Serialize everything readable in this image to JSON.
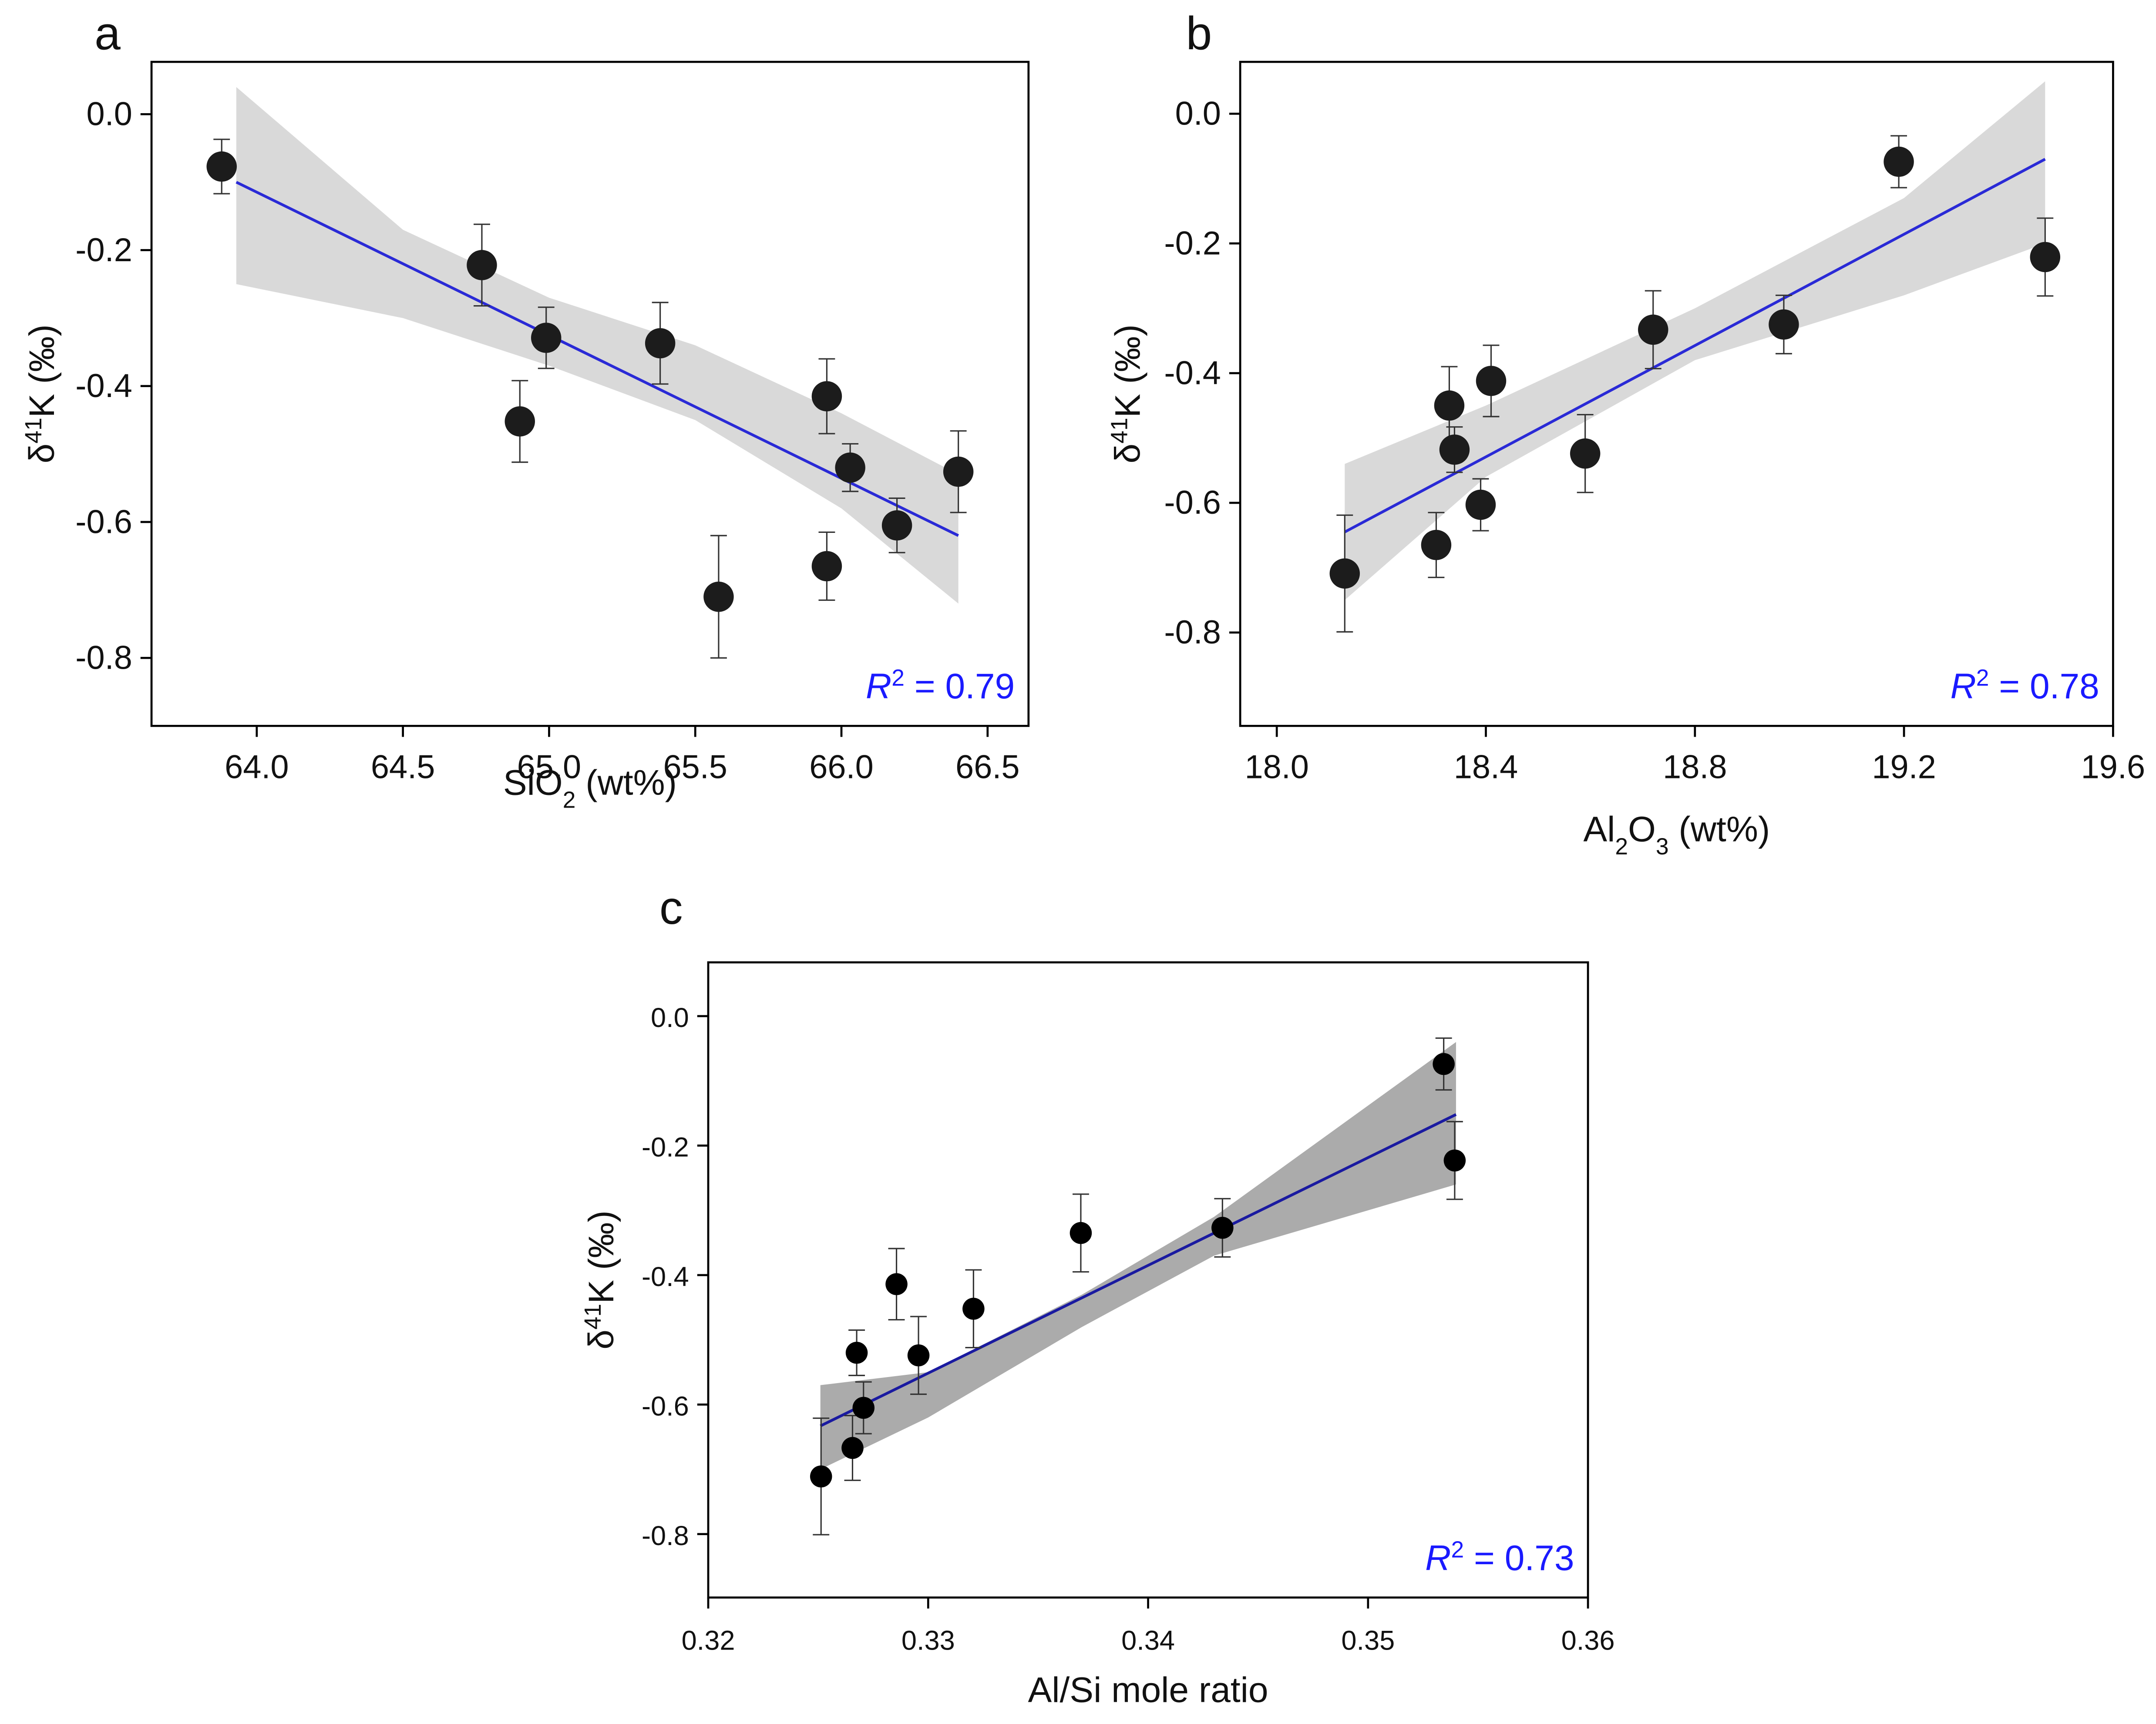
{
  "chart_data": [
    {
      "type": "scatter",
      "panel_label": "a",
      "xlabel": [
        {
          "text": "SiO"
        },
        {
          "text": "2",
          "shift": "sub"
        },
        {
          "text": " (wt%)"
        }
      ],
      "ylabel": [
        {
          "text": "δ"
        },
        {
          "text": "41",
          "shift": "super"
        },
        {
          "text": "K (‰)"
        }
      ],
      "x": [
        63.88,
        64.77,
        64.99,
        64.9,
        65.38,
        65.95,
        66.03,
        66.19,
        66.4,
        65.58,
        65.95
      ],
      "y": [
        -0.077,
        -0.222,
        -0.329,
        -0.452,
        -0.337,
        -0.415,
        -0.52,
        -0.605,
        -0.526,
        -0.71,
        -0.665
      ],
      "errors": [
        0.04,
        0.06,
        0.045,
        0.06,
        0.06,
        0.055,
        0.035,
        0.04,
        0.06,
        0.09,
        0.05
      ],
      "marker_color": "#1c1c1c",
      "fit": {
        "x": [
          63.93,
          66.4
        ],
        "y": [
          -0.1,
          -0.62
        ],
        "color": "#2a2ad6"
      },
      "band": {
        "x": [
          63.93,
          64.5,
          65.0,
          65.5,
          66.0,
          66.4
        ],
        "upper": [
          0.04,
          -0.17,
          -0.27,
          -0.34,
          -0.44,
          -0.53
        ],
        "lower": [
          -0.25,
          -0.3,
          -0.37,
          -0.45,
          -0.58,
          -0.72
        ],
        "color": "#d9d9d9"
      },
      "annotation": [
        {
          "text": "R",
          "style": "italic"
        },
        {
          "text": "2",
          "shift": "super"
        },
        {
          "text": " = 0.79"
        }
      ],
      "annotation_color": "#1a1aff",
      "xlim": [
        63.64,
        66.64
      ],
      "ylim": [
        -0.9,
        0.077
      ],
      "xticks": [
        {
          "value": 64,
          "label": "64.0"
        },
        64.5,
        {
          "value": 65,
          "label": "65.0"
        },
        65.5,
        {
          "value": 66,
          "label": "66.0"
        },
        66.5
      ],
      "yticks": [
        {
          "value": 0,
          "label": "0.0"
        },
        -0.2,
        -0.4,
        -0.6,
        -0.8
      ]
    },
    {
      "type": "scatter",
      "panel_label": "b",
      "xlabel": [
        {
          "text": "Al"
        },
        {
          "text": "2",
          "shift": "sub"
        },
        {
          "text": "O"
        },
        {
          "text": "3",
          "shift": "sub"
        },
        {
          "text": " (wt%)"
        }
      ],
      "ylabel": [
        {
          "text": "δ"
        },
        {
          "text": "41",
          "shift": "super"
        },
        {
          "text": "K (‰)"
        }
      ],
      "x": [
        18.13,
        18.305,
        18.33,
        18.34,
        18.39,
        18.41,
        18.59,
        18.72,
        18.97,
        19.19,
        19.47
      ],
      "y": [
        -0.709,
        -0.665,
        -0.45,
        -0.518,
        -0.603,
        -0.412,
        -0.524,
        -0.333,
        -0.325,
        -0.074,
        -0.221
      ],
      "errors": [
        0.09,
        0.05,
        0.06,
        0.035,
        0.04,
        0.055,
        0.06,
        0.06,
        0.045,
        0.04,
        0.06
      ],
      "marker_color": "#1c1c1c",
      "fit": {
        "x": [
          18.13,
          19.47
        ],
        "y": [
          -0.645,
          -0.07
        ],
        "color": "#2a2ad6"
      },
      "band": {
        "x": [
          18.13,
          18.4,
          18.8,
          19.2,
          19.47
        ],
        "upper": [
          -0.54,
          -0.45,
          -0.3,
          -0.13,
          0.05
        ],
        "lower": [
          -0.75,
          -0.56,
          -0.38,
          -0.28,
          -0.2
        ],
        "color": "#d9d9d9"
      },
      "annotation": [
        {
          "text": "R",
          "style": "italic"
        },
        {
          "text": "2",
          "shift": "super"
        },
        {
          "text": " = 0.78"
        }
      ],
      "annotation_color": "#1a1aff",
      "xlim": [
        17.93,
        19.6
      ],
      "ylim": [
        -0.944,
        0.08
      ],
      "xticks": [
        {
          "value": 18,
          "label": "18.0"
        },
        18.4,
        18.8,
        19.2,
        19.6
      ],
      "yticks": [
        {
          "value": 0,
          "label": "0.0"
        },
        -0.2,
        -0.4,
        -0.6,
        -0.8
      ]
    },
    {
      "type": "scatter",
      "panel_label": "c",
      "xlabel": [
        {
          "text": "Al/Si mole ratio"
        }
      ],
      "ylabel": [
        {
          "text": "δ"
        },
        {
          "text": "41",
          "shift": "super"
        },
        {
          "text": "K (‰)"
        }
      ],
      "x": [
        0.32513,
        0.32656,
        0.32675,
        0.32706,
        0.32856,
        0.32956,
        0.33206,
        0.33694,
        0.34338,
        0.35344,
        0.35394
      ],
      "y": [
        -0.711,
        -0.667,
        -0.52,
        -0.605,
        -0.414,
        -0.524,
        -0.452,
        -0.335,
        -0.327,
        -0.074,
        -0.223
      ],
      "errors": [
        0.09,
        0.05,
        0.035,
        0.04,
        0.055,
        0.06,
        0.06,
        0.06,
        0.045,
        0.04,
        0.06
      ],
      "marker_color": "#000000",
      "fit": {
        "x": [
          0.3251,
          0.354
        ],
        "y": [
          -0.633,
          -0.152
        ],
        "color": "#1a1aa0"
      },
      "band": {
        "x": [
          0.3251,
          0.33,
          0.337,
          0.343,
          0.354
        ],
        "upper": [
          -0.57,
          -0.55,
          -0.43,
          -0.31,
          -0.04
        ],
        "lower": [
          -0.7,
          -0.62,
          -0.48,
          -0.37,
          -0.26
        ],
        "color": "#ababab"
      },
      "annotation": [
        {
          "text": "R",
          "style": "italic"
        },
        {
          "text": "2",
          "shift": "super"
        },
        {
          "text": " = 0.73"
        }
      ],
      "annotation_color": "#1a1aff",
      "xlim": [
        0.32,
        0.36
      ],
      "ylim": [
        -0.898,
        0.083
      ],
      "xticks": [
        0.32,
        0.33,
        0.34,
        0.35,
        0.36
      ],
      "yticks": [
        {
          "value": 0,
          "label": "0.0"
        },
        -0.2,
        -0.4,
        -0.6,
        -0.8
      ]
    }
  ]
}
